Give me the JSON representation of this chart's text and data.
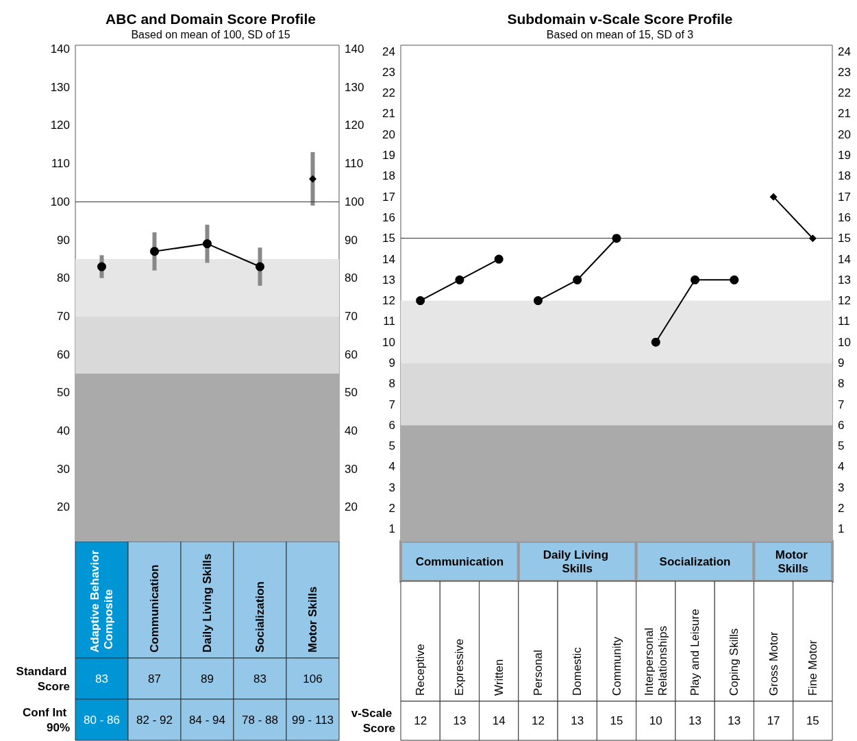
{
  "chart_data": [
    {
      "type": "line",
      "title": "ABC and Domain Score Profile",
      "subtitle": "Based on mean of 100, SD of 15",
      "categories": [
        "Adaptive Behavior Composite",
        "Communication",
        "Daily Living Skills",
        "Socialization",
        "Motor Skills"
      ],
      "series": [
        {
          "color": "#000000",
          "x": [
            "Adaptive Behavior Composite"
          ],
          "values": [
            83
          ],
          "errors": [
            [
              80,
              86
            ]
          ]
        },
        {
          "color": "#000000",
          "x": [
            "Communication",
            "Daily Living Skills",
            "Socialization"
          ],
          "values": [
            87,
            89,
            83
          ],
          "errors": [
            [
              82,
              92
            ],
            [
              84,
              94
            ],
            [
              78,
              88
            ]
          ]
        },
        {
          "color": "#000000",
          "marker": "diamond",
          "x": [
            "Motor Skills"
          ],
          "values": [
            106
          ],
          "errors": [
            [
              99,
              113
            ]
          ]
        }
      ],
      "ylim": [
        11,
        141
      ],
      "yticks": [
        20,
        30,
        40,
        50,
        60,
        70,
        80,
        90,
        100,
        110,
        120,
        130,
        140
      ],
      "y2lim": [
        11,
        141
      ],
      "y2ticks": [
        20,
        30,
        40,
        50,
        60,
        70,
        80,
        90,
        100,
        110,
        120,
        130,
        140
      ],
      "marker": "circle",
      "line_style": "solid",
      "ref_lines": [
        {
          "axis": "y",
          "value": 100,
          "color": "#333333"
        }
      ],
      "bands": [
        {
          "axis": "y",
          "from": 11,
          "to": 55,
          "color": "#aaaaaa"
        },
        {
          "axis": "y",
          "from": 55,
          "to": 70,
          "color": "#d9d9d9"
        },
        {
          "axis": "y",
          "from": 70,
          "to": 85,
          "color": "#e6e6e6"
        }
      ],
      "annotations": [
        "Standard Score",
        "83",
        "87",
        "89",
        "83",
        "106",
        "Conf Int 90%",
        "80 - 86",
        "82 - 92",
        "84 - 94",
        "78 - 88",
        "99 - 113"
      ]
    },
    {
      "type": "line",
      "title": "Subdomain v-Scale Score Profile",
      "subtitle": "Based on mean of 15, SD of 3",
      "categories": [
        "Receptive",
        "Expressive",
        "Written",
        "Personal",
        "Domestic",
        "Community",
        "Interpersonal Relationships",
        "Play and Leisure",
        "Coping Skills",
        "Gross Motor",
        "Fine Motor"
      ],
      "series": [
        {
          "color": "#000000",
          "x": [
            "Receptive",
            "Expressive",
            "Written"
          ],
          "values": [
            12,
            13,
            14
          ]
        },
        {
          "color": "#000000",
          "x": [
            "Personal",
            "Domestic",
            "Community"
          ],
          "values": [
            12,
            13,
            15
          ]
        },
        {
          "color": "#000000",
          "x": [
            "Interpersonal Relationships",
            "Play and Leisure",
            "Coping Skills"
          ],
          "values": [
            10,
            13,
            13
          ]
        },
        {
          "color": "#000000",
          "marker": "diamond",
          "x": [
            "Gross Motor",
            "Fine Motor"
          ],
          "values": [
            17,
            15
          ]
        }
      ],
      "ylim": [
        0.4,
        24.3
      ],
      "yticks": [
        1,
        2,
        3,
        4,
        5,
        6,
        7,
        8,
        9,
        10,
        11,
        12,
        13,
        14,
        15,
        16,
        17,
        18,
        19,
        20,
        21,
        22,
        23,
        24
      ],
      "y2lim": [
        0.4,
        24.3
      ],
      "y2ticks": [
        1,
        2,
        3,
        4,
        5,
        6,
        7,
        8,
        9,
        10,
        11,
        12,
        13,
        14,
        15,
        16,
        17,
        18,
        19,
        20,
        21,
        22,
        23,
        24
      ],
      "marker": "circle",
      "line_style": "solid",
      "ref_lines": [
        {
          "axis": "y",
          "value": 15,
          "color": "#333333"
        }
      ],
      "bands": [
        {
          "axis": "y",
          "from": 0.4,
          "to": 6,
          "color": "#aaaaaa"
        },
        {
          "axis": "y",
          "from": 6,
          "to": 9,
          "color": "#d9d9d9"
        },
        {
          "axis": "y",
          "from": 9,
          "to": 12,
          "color": "#e6e6e6"
        }
      ],
      "annotations": [
        "Communication",
        "Daily Living Skills",
        "Socialization",
        "Motor Skills",
        "v-Scale Score",
        "12",
        "13",
        "14",
        "12",
        "13",
        "15",
        "10",
        "13",
        "13",
        "17",
        "15"
      ]
    }
  ]
}
